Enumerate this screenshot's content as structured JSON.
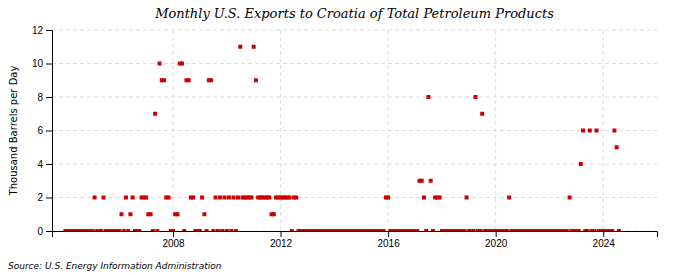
{
  "chart_data": {
    "type": "scatter",
    "title": "Monthly U.S. Exports to Croatia of Total Petroleum Products",
    "y_label": "Thousand Barrels per Day",
    "annotations": [
      "Source: U.S. Energy Information Administration"
    ],
    "color": "#cc0000",
    "marker": "square",
    "grid": true,
    "xlim": [
      2003.5,
      2026.0
    ],
    "xticks": [
      2008,
      2012,
      2016,
      2020,
      2024
    ],
    "ylim": [
      0,
      12
    ],
    "yticks": [
      0,
      2,
      4,
      6,
      8,
      10,
      12
    ],
    "x": [
      2004.0,
      2004.083,
      2004.167,
      2004.25,
      2004.333,
      2004.417,
      2004.5,
      2004.583,
      2004.667,
      2004.75,
      2004.833,
      2004.917,
      2005.0,
      2005.083,
      2005.167,
      2005.25,
      2005.333,
      2005.417,
      2005.5,
      2005.583,
      2005.667,
      2005.75,
      2005.833,
      2005.917,
      2006.0,
      2006.083,
      2006.167,
      2006.25,
      2006.333,
      2006.417,
      2006.5,
      2006.583,
      2006.667,
      2006.75,
      2006.833,
      2006.917,
      2007.0,
      2007.083,
      2007.167,
      2007.25,
      2007.333,
      2007.417,
      2007.5,
      2007.583,
      2007.667,
      2007.75,
      2007.833,
      2007.917,
      2008.0,
      2008.083,
      2008.167,
      2008.25,
      2008.333,
      2008.417,
      2008.5,
      2008.583,
      2008.667,
      2008.75,
      2008.833,
      2008.917,
      2009.0,
      2009.083,
      2009.167,
      2009.25,
      2009.333,
      2009.417,
      2009.5,
      2009.583,
      2009.667,
      2009.75,
      2009.833,
      2009.917,
      2010.0,
      2010.083,
      2010.167,
      2010.25,
      2010.333,
      2010.417,
      2010.5,
      2010.583,
      2010.667,
      2010.75,
      2010.833,
      2010.917,
      2011.0,
      2011.083,
      2011.167,
      2011.25,
      2011.333,
      2011.417,
      2011.5,
      2011.583,
      2011.667,
      2011.75,
      2011.833,
      2011.917,
      2012.0,
      2012.083,
      2012.167,
      2012.25,
      2012.333,
      2012.417,
      2012.5,
      2012.583,
      2012.667,
      2012.75,
      2012.833,
      2012.917,
      2013.0,
      2013.083,
      2013.167,
      2013.25,
      2013.333,
      2013.417,
      2013.5,
      2013.583,
      2013.667,
      2013.75,
      2013.833,
      2013.917,
      2014.0,
      2014.083,
      2014.167,
      2014.25,
      2014.333,
      2014.417,
      2014.5,
      2014.583,
      2014.667,
      2014.75,
      2014.833,
      2014.917,
      2015.0,
      2015.083,
      2015.167,
      2015.25,
      2015.333,
      2015.417,
      2015.5,
      2015.583,
      2015.667,
      2015.75,
      2015.833,
      2015.917,
      2016.0,
      2016.083,
      2016.167,
      2016.25,
      2016.333,
      2016.417,
      2016.5,
      2016.583,
      2016.667,
      2016.75,
      2016.833,
      2016.917,
      2017.0,
      2017.083,
      2017.167,
      2017.25,
      2017.333,
      2017.417,
      2017.5,
      2017.583,
      2017.667,
      2017.75,
      2017.833,
      2017.917,
      2018.0,
      2018.083,
      2018.167,
      2018.25,
      2018.333,
      2018.417,
      2018.5,
      2018.583,
      2018.667,
      2018.75,
      2018.833,
      2018.917,
      2019.0,
      2019.083,
      2019.167,
      2019.25,
      2019.333,
      2019.417,
      2019.5,
      2019.583,
      2019.667,
      2019.75,
      2019.833,
      2019.917,
      2020.0,
      2020.083,
      2020.167,
      2020.25,
      2020.333,
      2020.417,
      2020.5,
      2020.583,
      2020.667,
      2020.75,
      2020.833,
      2020.917,
      2021.0,
      2021.083,
      2021.167,
      2021.25,
      2021.333,
      2021.417,
      2021.5,
      2021.583,
      2021.667,
      2021.75,
      2021.833,
      2021.917,
      2022.0,
      2022.083,
      2022.167,
      2022.25,
      2022.333,
      2022.417,
      2022.5,
      2022.583,
      2022.667,
      2022.75,
      2022.833,
      2022.917,
      2023.0,
      2023.083,
      2023.167,
      2023.25,
      2023.333,
      2023.417,
      2023.5,
      2023.583,
      2023.667,
      2023.75,
      2023.833,
      2023.917,
      2024.0,
      2024.083,
      2024.167,
      2024.25,
      2024.333,
      2024.417,
      2024.5,
      2024.583
    ],
    "values": [
      0,
      0,
      0,
      0,
      0,
      0,
      0,
      0,
      0,
      0,
      0,
      0,
      0,
      2,
      0,
      0,
      0,
      2,
      0,
      0,
      0,
      0,
      0,
      0,
      0,
      1,
      0,
      2,
      0,
      1,
      2,
      0,
      0,
      0,
      2,
      2,
      2,
      1,
      1,
      0,
      7,
      0,
      10,
      9,
      9,
      2,
      2,
      0,
      0,
      1,
      1,
      10,
      10,
      0,
      9,
      9,
      2,
      2,
      0,
      0,
      0,
      2,
      1,
      0,
      9,
      9,
      0,
      2,
      0,
      2,
      0,
      2,
      0,
      2,
      0,
      2,
      0,
      2,
      11,
      2,
      2,
      2,
      2,
      2,
      11,
      9,
      2,
      2,
      2,
      2,
      2,
      2,
      1,
      1,
      2,
      2,
      2,
      2,
      2,
      2,
      2,
      0,
      2,
      2,
      0,
      0,
      0,
      0,
      0,
      0,
      0,
      0,
      0,
      0,
      0,
      0,
      0,
      0,
      0,
      0,
      0,
      0,
      0,
      0,
      0,
      0,
      0,
      0,
      0,
      0,
      0,
      0,
      0,
      0,
      0,
      0,
      0,
      0,
      0,
      0,
      0,
      0,
      0,
      2,
      2,
      0,
      0,
      0,
      0,
      0,
      0,
      0,
      0,
      0,
      0,
      0,
      0,
      0,
      3,
      3,
      2,
      0,
      8,
      3,
      0,
      2,
      2,
      2,
      0,
      0,
      0,
      0,
      0,
      0,
      0,
      0,
      0,
      0,
      0,
      2,
      0,
      0,
      0,
      8,
      0,
      0,
      7,
      0,
      0,
      0,
      0,
      0,
      0,
      0,
      0,
      0,
      0,
      0,
      2,
      0,
      0,
      0,
      0,
      0,
      0,
      0,
      0,
      0,
      0,
      0,
      0,
      0,
      0,
      0,
      0,
      0,
      0,
      0,
      0,
      0,
      0,
      0,
      0,
      0,
      0,
      2,
      0,
      0,
      0,
      0,
      4,
      6,
      0,
      0,
      6,
      0,
      0,
      6,
      0,
      0,
      0,
      0,
      0,
      0,
      0,
      6,
      5,
      0
    ]
  }
}
